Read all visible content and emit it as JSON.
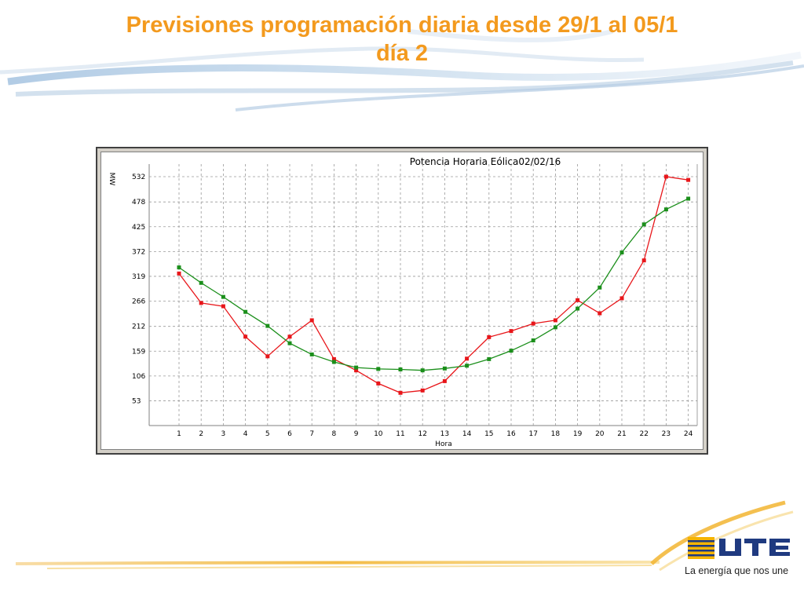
{
  "slide": {
    "title_line1": "Previsiones programación diaria desde 29/1 al 05/1",
    "title_line2": "día 2",
    "title_color": "#f39a1e"
  },
  "brand": {
    "logo_text": "UTE",
    "tagline": "La energía que nos une"
  },
  "chart_data": {
    "type": "line",
    "title": "Potencia Horaria Eólica02/02/16",
    "xlabel": "Hora",
    "ylabel": "MW",
    "categories": [
      1,
      2,
      3,
      4,
      5,
      6,
      7,
      8,
      9,
      10,
      11,
      12,
      13,
      14,
      15,
      16,
      17,
      18,
      19,
      20,
      21,
      22,
      23,
      24
    ],
    "yticks": [
      53,
      106,
      159,
      212,
      266,
      319,
      372,
      425,
      478,
      532
    ],
    "ylim": [
      0,
      532
    ],
    "grid": true,
    "series": [
      {
        "color": "#e8161a",
        "values": [
          325,
          262,
          255,
          190,
          148,
          190,
          225,
          142,
          118,
          90,
          70,
          75,
          95,
          143,
          189,
          202,
          218,
          225,
          268,
          240,
          272,
          353,
          532,
          525
        ]
      },
      {
        "color": "#1b8f1b",
        "values": [
          338,
          305,
          275,
          243,
          213,
          176,
          152,
          136,
          124,
          121,
          120,
          118,
          122,
          128,
          142,
          160,
          182,
          210,
          250,
          295,
          370,
          430,
          462,
          485
        ]
      }
    ]
  }
}
